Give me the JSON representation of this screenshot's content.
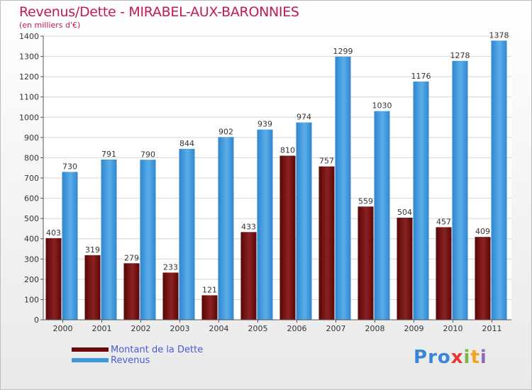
{
  "title": "Revenus/Dette - MIRABEL-AUX-BARONNIES",
  "subtitle": "(en milliers d'€)",
  "logo": {
    "p": "P",
    "r": "r",
    "o": "o",
    "x": "x",
    "i": "i",
    "t": "t",
    "i2": "i"
  },
  "legend": [
    {
      "label": "Montant de la Dette",
      "color": "#6b0a0a"
    },
    {
      "label": "Revenus",
      "color": "#3d97dd"
    }
  ],
  "chart_data": {
    "type": "bar",
    "categories": [
      "2000",
      "2001",
      "2002",
      "2003",
      "2004",
      "2005",
      "2006",
      "2007",
      "2008",
      "2009",
      "2010",
      "2011"
    ],
    "series": [
      {
        "name": "Montant de la Dette",
        "values": [
          403,
          319,
          279,
          233,
          121,
          433,
          810,
          757,
          559,
          504,
          457,
          409
        ],
        "color": "#7a1414"
      },
      {
        "name": "Revenus",
        "values": [
          730,
          791,
          790,
          844,
          902,
          939,
          974,
          1299,
          1030,
          1176,
          1278,
          1378
        ],
        "color": "#3d97dd"
      }
    ],
    "yticks": [
      0,
      100,
      200,
      300,
      400,
      500,
      600,
      700,
      800,
      900,
      1000,
      1100,
      1200,
      1300,
      1400
    ],
    "ylim": [
      0,
      1400
    ],
    "grid": true
  }
}
